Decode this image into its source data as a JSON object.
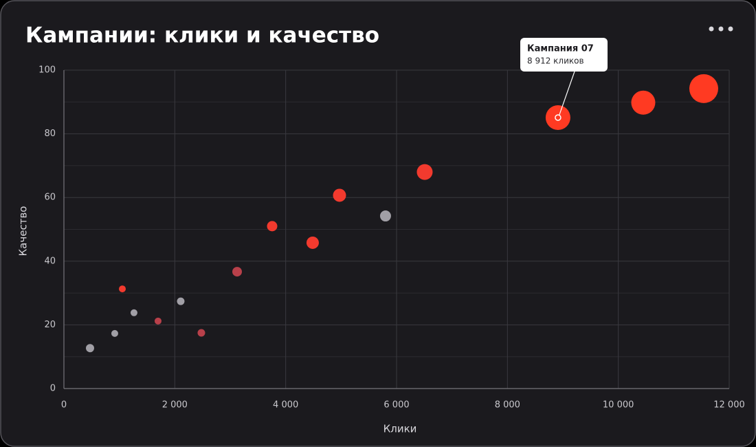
{
  "chart_data": {
    "type": "scatter",
    "title": "Кампании: клики и качество",
    "xlabel": "Клики",
    "ylabel": "Качество",
    "x": [
      471,
      917,
      1054,
      1264,
      1698,
      2107,
      2479,
      3124,
      3756,
      4487,
      4971,
      5801,
      6508,
      8912,
      10450,
      11541
    ],
    "y": [
      12.7,
      17.3,
      31.3,
      23.8,
      21.2,
      27.4,
      17.5,
      36.7,
      51,
      45.8,
      60.7,
      54.2,
      68,
      85.1,
      89.8,
      94.2
    ],
    "sizes": [
      6,
      5,
      5,
      5,
      5,
      5.5,
      5.5,
      7,
      7.5,
      9,
      9.5,
      8,
      11.5,
      18,
      17.5,
      21
    ],
    "colors": [
      "#a19fa6",
      "#a19fa6",
      "#f23a2e",
      "#a19fa6",
      "#b8404a",
      "#a19fa6",
      "#b8404a",
      "#b8404a",
      "#f23a2e",
      "#f23a2e",
      "#f23a2e",
      "#a19fa6",
      "#f23a2e",
      "#ff3a22",
      "#ff3a22",
      "#ff3a22"
    ],
    "xlim": [
      0,
      12000
    ],
    "xticks": [
      0,
      {
        "value": 2000,
        "label": "2 000"
      },
      {
        "value": 4000,
        "label": "4 000"
      },
      {
        "value": 6000,
        "label": "6 000"
      },
      {
        "value": 8000,
        "label": "8 000"
      },
      {
        "value": 10000,
        "label": "10 000"
      },
      {
        "value": 12000,
        "label": "12 000"
      }
    ],
    "ylim": [
      0,
      100
    ],
    "yticks": [
      0,
      20,
      40,
      60,
      80,
      100
    ],
    "yminor": [
      10,
      30,
      50,
      70,
      90
    ],
    "grid": true,
    "tooltip": {
      "title": "Кампания 07",
      "text": "8 912 кликов"
    }
  }
}
